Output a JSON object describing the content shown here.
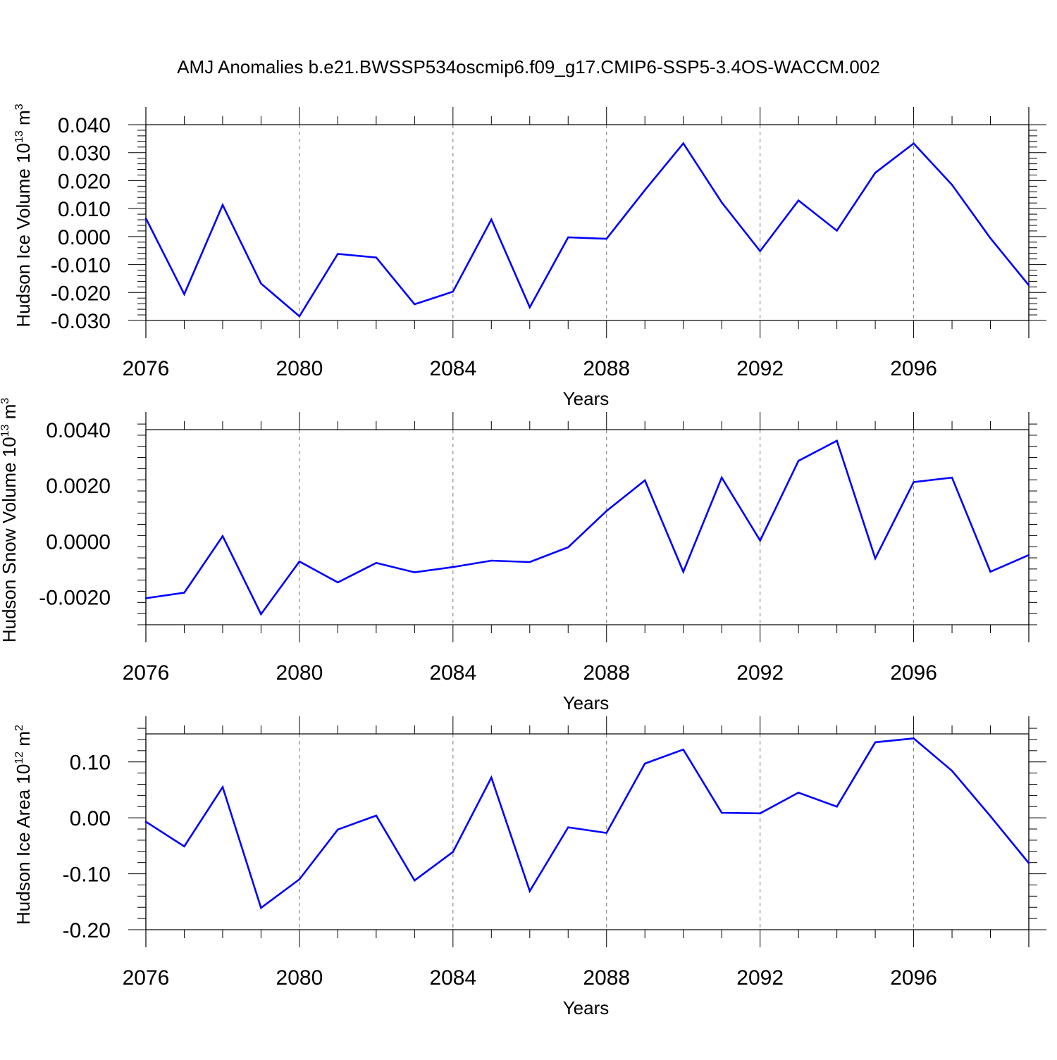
{
  "title": "AMJ Anomalies b.e21.BWSSP534oscmip6.f09_g17.CMIP6-SSP5-3.4OS-WACCM.002",
  "colors": {
    "line": "#0000ff",
    "axis": "#000000",
    "grid": "#777777"
  },
  "chart_data": [
    {
      "type": "line",
      "ylabel": "Hudson Ice Volume 10",
      "ylabel_exp": "13",
      "ylabel_unit": " m",
      "ylabel_unit_exp": "3",
      "xlabel": "Years",
      "xlim": [
        2076,
        2099
      ],
      "ylim": [
        -0.03,
        0.04
      ],
      "yticks": [
        -0.03,
        -0.02,
        -0.01,
        0.0,
        0.01,
        0.02,
        0.03,
        0.04
      ],
      "yticklabels": [
        "-0.030",
        "-0.020",
        "-0.010",
        "0.000",
        "0.010",
        "0.020",
        "0.030",
        "0.040"
      ],
      "yminor_step": 0.002,
      "xticks": [
        2076,
        2080,
        2084,
        2088,
        2092,
        2096
      ],
      "xticklabels": [
        "2076",
        "2080",
        "2084",
        "2088",
        "2092",
        "2096"
      ],
      "x": [
        2076,
        2077,
        2078,
        2079,
        2080,
        2081,
        2082,
        2083,
        2084,
        2085,
        2086,
        2087,
        2088,
        2089,
        2090,
        2091,
        2092,
        2093,
        2094,
        2095,
        2096,
        2097,
        2098,
        2099
      ],
      "series": [
        {
          "name": "Hudson Ice Volume",
          "values": [
            0.0065,
            -0.0206,
            0.0113,
            -0.0168,
            -0.0285,
            -0.0062,
            -0.0075,
            -0.0242,
            -0.0197,
            0.0061,
            -0.0253,
            -0.0003,
            -0.0008,
            0.0166,
            0.0333,
            0.0122,
            -0.0052,
            0.0129,
            0.0021,
            0.0228,
            0.0333,
            0.0185,
            -0.0006,
            -0.0174
          ]
        }
      ]
    },
    {
      "type": "line",
      "ylabel": "Hudson Snow Volume 10",
      "ylabel_exp": "13",
      "ylabel_unit": " m",
      "ylabel_unit_exp": "3",
      "xlabel": "Years",
      "xlim": [
        2076,
        2099
      ],
      "ylim": [
        -0.003,
        0.004
      ],
      "yticks": [
        -0.002,
        0.0,
        0.002,
        0.004
      ],
      "yticklabels": [
        "-0.0020",
        "0.0000",
        "0.0020",
        "0.0040"
      ],
      "yminor_step": 0.0004,
      "xticks": [
        2076,
        2080,
        2084,
        2088,
        2092,
        2096
      ],
      "xticklabels": [
        "2076",
        "2080",
        "2084",
        "2088",
        "2092",
        "2096"
      ],
      "x": [
        2076,
        2077,
        2078,
        2079,
        2080,
        2081,
        2082,
        2083,
        2084,
        2085,
        2086,
        2087,
        2088,
        2089,
        2090,
        2091,
        2092,
        2093,
        2094,
        2095,
        2096,
        2097,
        2098,
        2099
      ],
      "series": [
        {
          "name": "Hudson Snow Volume",
          "values": [
            -0.00205,
            -0.00185,
            0.00018,
            -0.00262,
            -0.00073,
            -0.00148,
            -0.00078,
            -0.00112,
            -0.00093,
            -0.0007,
            -0.00075,
            -0.00022,
            0.00108,
            0.00218,
            -0.0011,
            0.00228,
            2e-05,
            0.00288,
            0.0036,
            -0.00062,
            0.00212,
            0.00228,
            -0.0011,
            -0.0005
          ]
        }
      ]
    },
    {
      "type": "line",
      "ylabel": "Hudson Ice Area 10",
      "ylabel_exp": "12",
      "ylabel_unit": " m",
      "ylabel_unit_exp": "2",
      "xlabel": "Years",
      "xlim": [
        2076,
        2099
      ],
      "ylim": [
        -0.2,
        0.15
      ],
      "yticks": [
        -0.2,
        -0.1,
        0.0,
        0.1
      ],
      "yticklabels": [
        "-0.20",
        "-0.10",
        "0.00",
        "0.10"
      ],
      "yminor_step": 0.02,
      "xticks": [
        2076,
        2080,
        2084,
        2088,
        2092,
        2096
      ],
      "xticklabels": [
        "2076",
        "2080",
        "2084",
        "2088",
        "2092",
        "2096"
      ],
      "x": [
        2076,
        2077,
        2078,
        2079,
        2080,
        2081,
        2082,
        2083,
        2084,
        2085,
        2086,
        2087,
        2088,
        2089,
        2090,
        2091,
        2092,
        2093,
        2094,
        2095,
        2096,
        2097,
        2098,
        2099
      ],
      "series": [
        {
          "name": "Hudson Ice Area",
          "values": [
            -0.007,
            -0.051,
            0.055,
            -0.161,
            -0.11,
            -0.021,
            0.004,
            -0.112,
            -0.061,
            0.072,
            -0.131,
            -0.017,
            -0.027,
            0.097,
            0.122,
            0.009,
            0.008,
            0.045,
            0.02,
            0.135,
            0.142,
            0.084,
            0.003,
            -0.081
          ]
        }
      ]
    }
  ]
}
